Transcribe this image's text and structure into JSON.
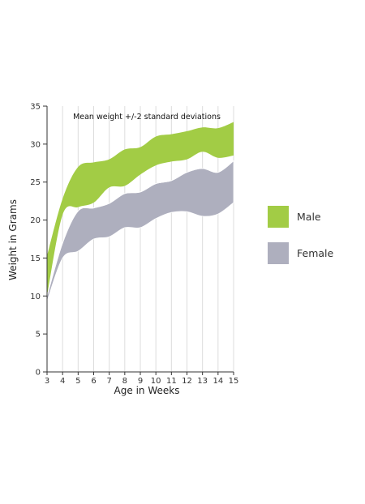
{
  "chart_data": {
    "type": "area",
    "title": "Mean weight +/-2 standard deviations",
    "xlabel": "Age in Weeks",
    "ylabel": "Weight in Grams",
    "x": [
      3,
      4,
      5,
      6,
      7,
      8,
      9,
      10,
      11,
      12,
      13,
      14,
      15
    ],
    "xlim": [
      3,
      15
    ],
    "ylim": [
      0,
      35
    ],
    "x_ticks": [
      "3",
      "4",
      "5",
      "6",
      "7",
      "8",
      "9",
      "10",
      "11",
      "12",
      "13",
      "14",
      "15"
    ],
    "y_ticks": [
      "0",
      "5",
      "10",
      "15",
      "20",
      "25",
      "30",
      "35"
    ],
    "grid": "vertical",
    "legend_position": "right",
    "series": [
      {
        "name": "Male",
        "color": "#a2cc45",
        "upper": [
          15.3,
          22.8,
          27.0,
          27.6,
          28.0,
          29.3,
          29.6,
          31.0,
          31.3,
          31.7,
          32.2,
          32.1,
          32.9
        ],
        "lower": [
          10.0,
          20.7,
          21.7,
          22.3,
          24.3,
          24.5,
          26.0,
          27.2,
          27.7,
          28.0,
          29.0,
          28.2,
          28.5
        ]
      },
      {
        "name": "Female",
        "color": "#aeafbe",
        "upper": [
          10.0,
          17.0,
          21.2,
          21.6,
          22.2,
          23.5,
          23.7,
          24.8,
          25.2,
          26.3,
          26.8,
          26.3,
          27.8
        ],
        "lower": [
          9.3,
          15.0,
          15.9,
          17.5,
          17.8,
          19.0,
          19.0,
          20.2,
          21.0,
          21.1,
          20.5,
          20.8,
          22.3
        ]
      }
    ],
    "overlap_color": "#5a8a30"
  }
}
